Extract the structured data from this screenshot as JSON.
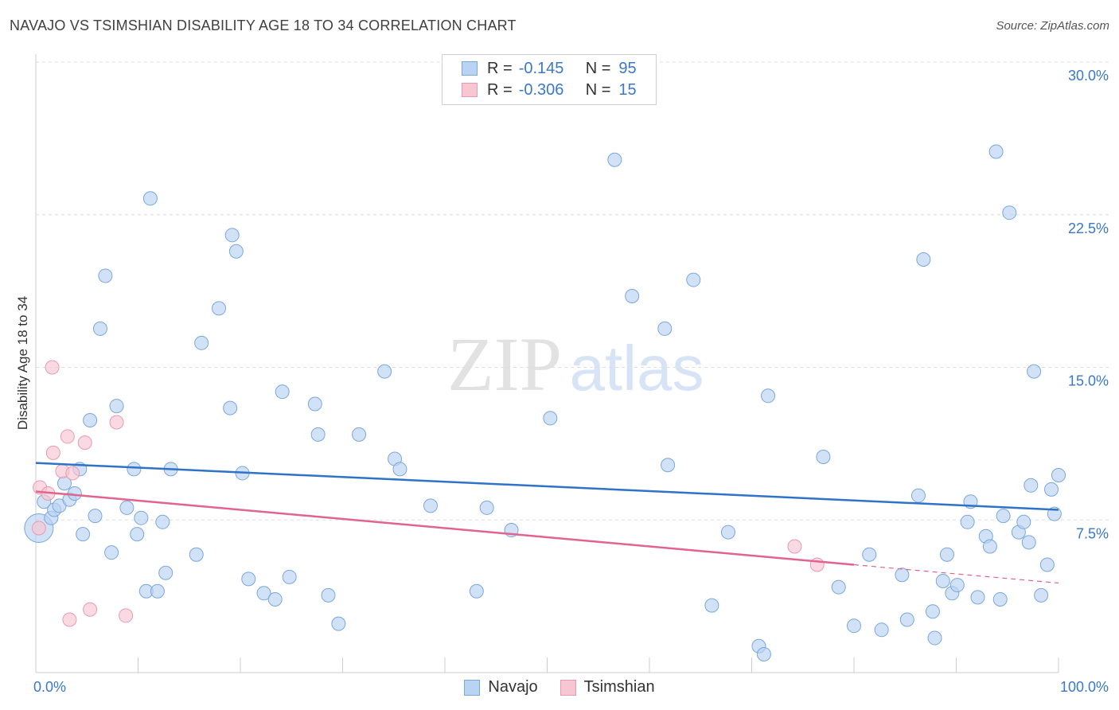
{
  "title": "NAVAJO VS TSIMSHIAN DISABILITY AGE 18 TO 34 CORRELATION CHART",
  "source": "Source: ZipAtlas.com",
  "watermark": {
    "zip": "ZIP",
    "atlas": "atlas"
  },
  "colors": {
    "navajo_fill": "#b9d3f3",
    "navajo_stroke": "#7aa7dc",
    "navajo_line": "#2e73c8",
    "tsimshian_fill": "#f7c6d3",
    "tsimshian_stroke": "#e99ab2",
    "tsimshian_line": "#e0648f",
    "tick_label": "#3a78c9",
    "grid": "#dddddd"
  },
  "legend": {
    "rows": [
      {
        "r_label": "R =",
        "r_value": "-0.145",
        "n_label": "N =",
        "n_value": "95"
      },
      {
        "r_label": "R =",
        "r_value": "-0.306",
        "n_label": "N =",
        "n_value": "15"
      }
    ]
  },
  "chart_data": {
    "type": "scatter",
    "title": "NAVAJO VS TSIMSHIAN DISABILITY AGE 18 TO 34 CORRELATION CHART",
    "xlabel": "",
    "ylabel": "Disability Age 18 to 34",
    "xlim": [
      0,
      100
    ],
    "ylim": [
      0,
      30
    ],
    "x_tick_labels": [
      "0.0%",
      "100.0%"
    ],
    "y_ticks": [
      7.5,
      15.0,
      22.5,
      30.0
    ],
    "y_tick_labels": [
      "7.5%",
      "15.0%",
      "22.5%",
      "30.0%"
    ],
    "grid": true,
    "legend_position": "bottom",
    "series": [
      {
        "name": "Navajo",
        "points": [
          [
            0.3,
            7.1
          ],
          [
            1.5,
            7.6
          ],
          [
            0.8,
            8.4
          ],
          [
            1.8,
            8.0
          ],
          [
            2.3,
            8.2
          ],
          [
            2.8,
            9.3
          ],
          [
            3.3,
            8.5
          ],
          [
            3.8,
            8.8
          ],
          [
            4.3,
            10.0
          ],
          [
            4.6,
            6.8
          ],
          [
            5.3,
            12.4
          ],
          [
            5.8,
            7.7
          ],
          [
            6.3,
            16.9
          ],
          [
            6.8,
            19.5
          ],
          [
            7.4,
            5.9
          ],
          [
            7.9,
            13.1
          ],
          [
            8.9,
            8.1
          ],
          [
            9.6,
            10.0
          ],
          [
            9.9,
            6.8
          ],
          [
            10.3,
            7.6
          ],
          [
            10.8,
            4.0
          ],
          [
            11.2,
            23.3
          ],
          [
            11.9,
            4.0
          ],
          [
            12.4,
            7.4
          ],
          [
            12.7,
            4.9
          ],
          [
            13.2,
            10.0
          ],
          [
            15.7,
            5.8
          ],
          [
            16.2,
            16.2
          ],
          [
            17.9,
            17.9
          ],
          [
            19.0,
            13.0
          ],
          [
            19.2,
            21.5
          ],
          [
            19.6,
            20.7
          ],
          [
            20.2,
            9.8
          ],
          [
            20.8,
            4.6
          ],
          [
            22.3,
            3.9
          ],
          [
            23.4,
            3.6
          ],
          [
            24.1,
            13.8
          ],
          [
            24.8,
            4.7
          ],
          [
            27.3,
            13.2
          ],
          [
            27.6,
            11.7
          ],
          [
            28.6,
            3.8
          ],
          [
            29.6,
            2.4
          ],
          [
            31.6,
            11.7
          ],
          [
            34.1,
            14.8
          ],
          [
            35.1,
            10.5
          ],
          [
            35.6,
            10.0
          ],
          [
            38.6,
            8.2
          ],
          [
            43.1,
            4.0
          ],
          [
            44.1,
            8.1
          ],
          [
            46.5,
            7.0
          ],
          [
            50.3,
            12.5
          ],
          [
            56.6,
            25.2
          ],
          [
            58.3,
            18.5
          ],
          [
            61.5,
            16.9
          ],
          [
            61.8,
            10.2
          ],
          [
            64.3,
            19.3
          ],
          [
            66.1,
            3.3
          ],
          [
            67.7,
            6.9
          ],
          [
            70.7,
            1.3
          ],
          [
            71.2,
            0.9
          ],
          [
            71.6,
            13.6
          ],
          [
            77.0,
            10.6
          ],
          [
            78.5,
            4.2
          ],
          [
            80.0,
            2.3
          ],
          [
            81.5,
            5.8
          ],
          [
            82.7,
            2.1
          ],
          [
            84.7,
            4.8
          ],
          [
            85.2,
            2.6
          ],
          [
            86.3,
            8.7
          ],
          [
            86.8,
            20.3
          ],
          [
            87.7,
            3.0
          ],
          [
            88.7,
            4.5
          ],
          [
            89.1,
            5.8
          ],
          [
            89.6,
            3.9
          ],
          [
            90.1,
            4.3
          ],
          [
            91.1,
            7.4
          ],
          [
            91.4,
            8.4
          ],
          [
            92.1,
            3.7
          ],
          [
            92.9,
            6.7
          ],
          [
            93.3,
            6.2
          ],
          [
            93.9,
            25.6
          ],
          [
            94.3,
            3.6
          ],
          [
            94.6,
            7.7
          ],
          [
            95.2,
            22.6
          ],
          [
            96.1,
            6.9
          ],
          [
            96.6,
            7.4
          ],
          [
            97.1,
            6.4
          ],
          [
            97.6,
            14.8
          ],
          [
            98.3,
            3.8
          ],
          [
            98.9,
            5.3
          ],
          [
            99.3,
            9.0
          ],
          [
            99.6,
            7.8
          ],
          [
            100.0,
            9.7
          ],
          [
            97.3,
            9.2
          ],
          [
            87.9,
            1.7
          ]
        ]
      },
      {
        "name": "Tsimshian",
        "points": [
          [
            0.3,
            7.1
          ],
          [
            0.4,
            9.1
          ],
          [
            1.2,
            8.8
          ],
          [
            1.6,
            15.0
          ],
          [
            1.7,
            10.8
          ],
          [
            2.6,
            9.9
          ],
          [
            3.1,
            11.6
          ],
          [
            3.6,
            9.8
          ],
          [
            4.8,
            11.3
          ],
          [
            3.3,
            2.6
          ],
          [
            5.3,
            3.1
          ],
          [
            7.9,
            12.3
          ],
          [
            8.8,
            2.8
          ],
          [
            74.2,
            6.2
          ],
          [
            76.4,
            5.3
          ]
        ]
      }
    ],
    "trend_lines": [
      {
        "series": "Navajo",
        "x": [
          0,
          100
        ],
        "y": [
          10.3,
          8.0
        ]
      },
      {
        "series": "Tsimshian",
        "x": [
          0,
          80
        ],
        "y": [
          8.9,
          5.3
        ],
        "dashed_extension_x": [
          80,
          100
        ],
        "dashed_extension_y": [
          5.3,
          4.4
        ]
      }
    ]
  }
}
